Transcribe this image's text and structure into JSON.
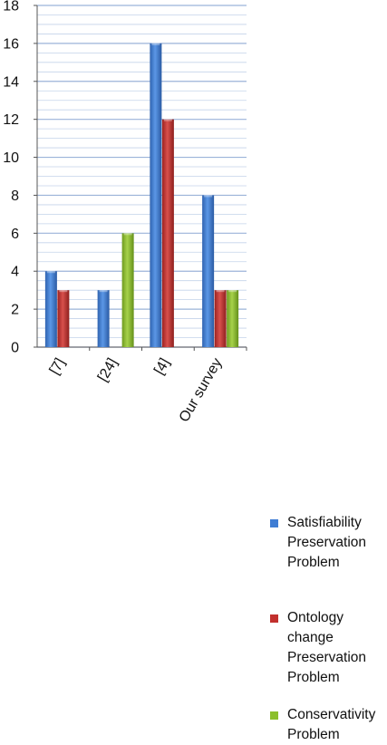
{
  "chart_data": {
    "type": "bar",
    "categories": [
      "[7]",
      "[24]",
      "[4]",
      "Our survey"
    ],
    "series": [
      {
        "name": "Satisfiability Preservation Problem",
        "values": [
          4,
          3,
          16,
          8
        ],
        "color": "#3f7dd4"
      },
      {
        "name": "Ontology change Preservation Problem",
        "values": [
          3,
          0,
          12,
          3
        ],
        "color": "#c2302d"
      },
      {
        "name": "Conservativity Problem",
        "values": [
          0,
          6,
          0,
          3
        ],
        "color": "#8cbf2c"
      }
    ],
    "ylim": [
      0,
      18
    ],
    "yticks": [
      0,
      2,
      4,
      6,
      8,
      10,
      12,
      14,
      16,
      18
    ],
    "ytick_labels": [
      "0",
      "2",
      "4",
      "6",
      "8",
      "10",
      "12",
      "14",
      "16",
      "18"
    ],
    "title": "",
    "xlabel": "",
    "ylabel": "",
    "grid": true,
    "legend_position": "right",
    "legend": [
      {
        "label": "Satisfiability\nPreservation\nProblem",
        "color": "#3f7dd4"
      },
      {
        "label": "Ontology\nchange\nPreservation\nProblem",
        "color": "#c2302d"
      },
      {
        "label": "Conservativity\nProblem",
        "color": "#8cbf2c"
      }
    ]
  }
}
